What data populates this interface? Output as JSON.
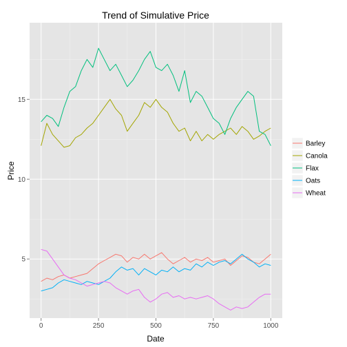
{
  "chart_data": {
    "type": "line",
    "title": "Trend of Simulative Price",
    "xlabel": "Date",
    "ylabel": "Price",
    "xlim": [
      -50,
      1050
    ],
    "ylim": [
      1.3,
      19.8
    ],
    "x_ticks": [
      0,
      250,
      500,
      750,
      1000
    ],
    "y_ticks": [
      5,
      10,
      15
    ],
    "grid": true,
    "legend_position": "right",
    "series": [
      {
        "name": "Barley",
        "color": "#F8766D",
        "x": [
          0,
          25,
          50,
          75,
          100,
          125,
          150,
          175,
          200,
          225,
          250,
          275,
          300,
          325,
          350,
          375,
          400,
          425,
          450,
          475,
          500,
          525,
          550,
          575,
          600,
          625,
          650,
          675,
          700,
          725,
          750,
          775,
          800,
          825,
          850,
          875,
          900,
          925,
          950,
          975,
          1000
        ],
        "values": [
          3.6,
          3.8,
          3.7,
          3.9,
          4.0,
          3.8,
          3.9,
          4.0,
          4.1,
          4.4,
          4.7,
          4.9,
          5.1,
          5.3,
          5.2,
          4.8,
          5.1,
          5.0,
          5.3,
          5.0,
          5.2,
          5.4,
          5.0,
          4.7,
          4.9,
          5.1,
          4.8,
          5.0,
          4.9,
          5.1,
          4.8,
          4.9,
          5.0,
          4.6,
          4.9,
          5.2,
          5.1,
          4.8,
          4.7,
          5.0,
          5.3
        ]
      },
      {
        "name": "Canola",
        "color": "#A3A500",
        "x": [
          0,
          25,
          50,
          75,
          100,
          125,
          150,
          175,
          200,
          225,
          250,
          275,
          300,
          325,
          350,
          375,
          400,
          425,
          450,
          475,
          500,
          525,
          550,
          575,
          600,
          625,
          650,
          675,
          700,
          725,
          750,
          775,
          800,
          825,
          850,
          875,
          900,
          925,
          950,
          975,
          1000
        ],
        "values": [
          12.1,
          13.5,
          12.8,
          12.4,
          12.0,
          12.1,
          12.6,
          12.8,
          13.2,
          13.5,
          14.0,
          14.5,
          15.0,
          14.4,
          14.0,
          13.0,
          13.5,
          14.0,
          14.8,
          14.5,
          15.0,
          14.5,
          14.2,
          13.5,
          13.0,
          13.2,
          12.4,
          13.0,
          12.4,
          12.8,
          12.5,
          12.8,
          13.0,
          13.2,
          12.8,
          13.3,
          13.0,
          12.5,
          12.7,
          13.0,
          13.2
        ]
      },
      {
        "name": "Flax",
        "color": "#00BF7D",
        "x": [
          0,
          25,
          50,
          75,
          100,
          125,
          150,
          175,
          200,
          225,
          250,
          275,
          300,
          325,
          350,
          375,
          400,
          425,
          450,
          475,
          500,
          525,
          550,
          575,
          600,
          625,
          650,
          675,
          700,
          725,
          750,
          775,
          800,
          825,
          850,
          875,
          900,
          925,
          950,
          975,
          1000
        ],
        "values": [
          13.6,
          14.0,
          13.8,
          13.3,
          14.5,
          15.5,
          15.8,
          16.8,
          17.5,
          17.0,
          18.2,
          17.5,
          16.8,
          17.2,
          16.5,
          15.8,
          16.2,
          16.8,
          17.5,
          18.0,
          17.0,
          16.8,
          17.2,
          16.5,
          15.5,
          16.8,
          14.8,
          15.5,
          15.2,
          14.5,
          13.8,
          13.5,
          12.8,
          13.8,
          14.5,
          15.0,
          15.5,
          15.2,
          13.0,
          12.8,
          12.1
        ]
      },
      {
        "name": "Oats",
        "color": "#00B0F6",
        "x": [
          0,
          25,
          50,
          75,
          100,
          125,
          150,
          175,
          200,
          225,
          250,
          275,
          300,
          325,
          350,
          375,
          400,
          425,
          450,
          475,
          500,
          525,
          550,
          575,
          600,
          625,
          650,
          675,
          700,
          725,
          750,
          775,
          800,
          825,
          850,
          875,
          900,
          925,
          950,
          975,
          1000
        ],
        "values": [
          3.0,
          3.1,
          3.2,
          3.5,
          3.7,
          3.6,
          3.5,
          3.4,
          3.6,
          3.5,
          3.4,
          3.6,
          3.8,
          4.2,
          4.5,
          4.3,
          4.4,
          4.0,
          4.4,
          4.2,
          4.0,
          4.3,
          4.2,
          4.5,
          4.2,
          4.4,
          4.3,
          4.7,
          4.5,
          4.8,
          4.6,
          4.8,
          4.9,
          4.7,
          5.0,
          5.3,
          5.0,
          4.8,
          4.5,
          4.7,
          4.6
        ]
      },
      {
        "name": "Wheat",
        "color": "#E76BF3",
        "x": [
          0,
          25,
          50,
          75,
          100,
          125,
          150,
          175,
          200,
          225,
          250,
          275,
          300,
          325,
          350,
          375,
          400,
          425,
          450,
          475,
          500,
          525,
          550,
          575,
          600,
          625,
          650,
          675,
          700,
          725,
          750,
          775,
          800,
          825,
          850,
          875,
          900,
          925,
          950,
          975,
          1000
        ],
        "values": [
          5.6,
          5.5,
          5.0,
          4.5,
          4.0,
          3.8,
          3.7,
          3.5,
          3.3,
          3.4,
          3.5,
          3.6,
          3.5,
          3.2,
          3.0,
          2.8,
          3.0,
          3.1,
          2.6,
          2.3,
          2.5,
          2.8,
          2.9,
          2.6,
          2.7,
          2.5,
          2.6,
          2.5,
          2.6,
          2.7,
          2.5,
          2.2,
          2.0,
          1.8,
          2.0,
          1.9,
          2.0,
          2.3,
          2.6,
          2.8,
          2.8
        ]
      }
    ]
  }
}
